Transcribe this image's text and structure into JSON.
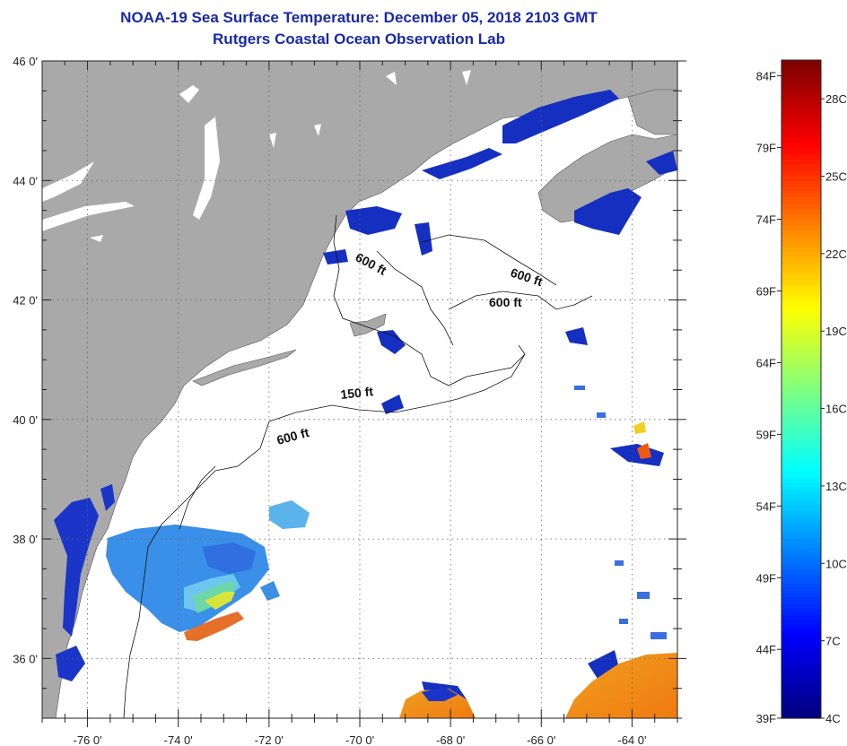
{
  "title": {
    "line1": "NOAA-19 Sea Surface Temperature:  December 05, 2018 2103 GMT",
    "line2": "Rutgers Coastal Ocean Observation Lab"
  },
  "map": {
    "lon_range": [
      -77.0,
      -63.0
    ],
    "lat_range": [
      35.0,
      46.0
    ],
    "lon_ticks": [
      -76,
      -74,
      -72,
      -70,
      -68,
      -66,
      -64
    ],
    "lon_labels": [
      "-76 0'",
      "-74 0'",
      "-72 0'",
      "-70 0'",
      "-68 0'",
      "-66 0'",
      "-64 0'"
    ],
    "lat_ticks": [
      36,
      38,
      40,
      42,
      44,
      46
    ],
    "lat_labels": [
      "36 0'",
      "38 0'",
      "40 0'",
      "42 0'",
      "44 0'",
      "46 0'"
    ],
    "grid": "dotted",
    "contour_labels": [
      "600 ft",
      "600 ft",
      "600 ft",
      "150 ft",
      "600 ft"
    ],
    "colors": {
      "land": "#a9a9a9",
      "water": "#ffffff",
      "grid": "#666666"
    }
  },
  "colorbar": {
    "fahrenheit_labels": [
      "84F",
      "79F",
      "74F",
      "69F",
      "64F",
      "59F",
      "54F",
      "49F",
      "44F",
      "39F"
    ],
    "fahrenheit_values": [
      84,
      79,
      74,
      69,
      64,
      59,
      54,
      49,
      44,
      39
    ],
    "celsius_labels": [
      "28C",
      "25C",
      "22C",
      "19C",
      "16C",
      "13C",
      "10C",
      "7C",
      "4C"
    ],
    "celsius_values": [
      28,
      25,
      22,
      19,
      16,
      13,
      10,
      7,
      4
    ],
    "range_celsius": [
      4,
      29.5
    ]
  }
}
